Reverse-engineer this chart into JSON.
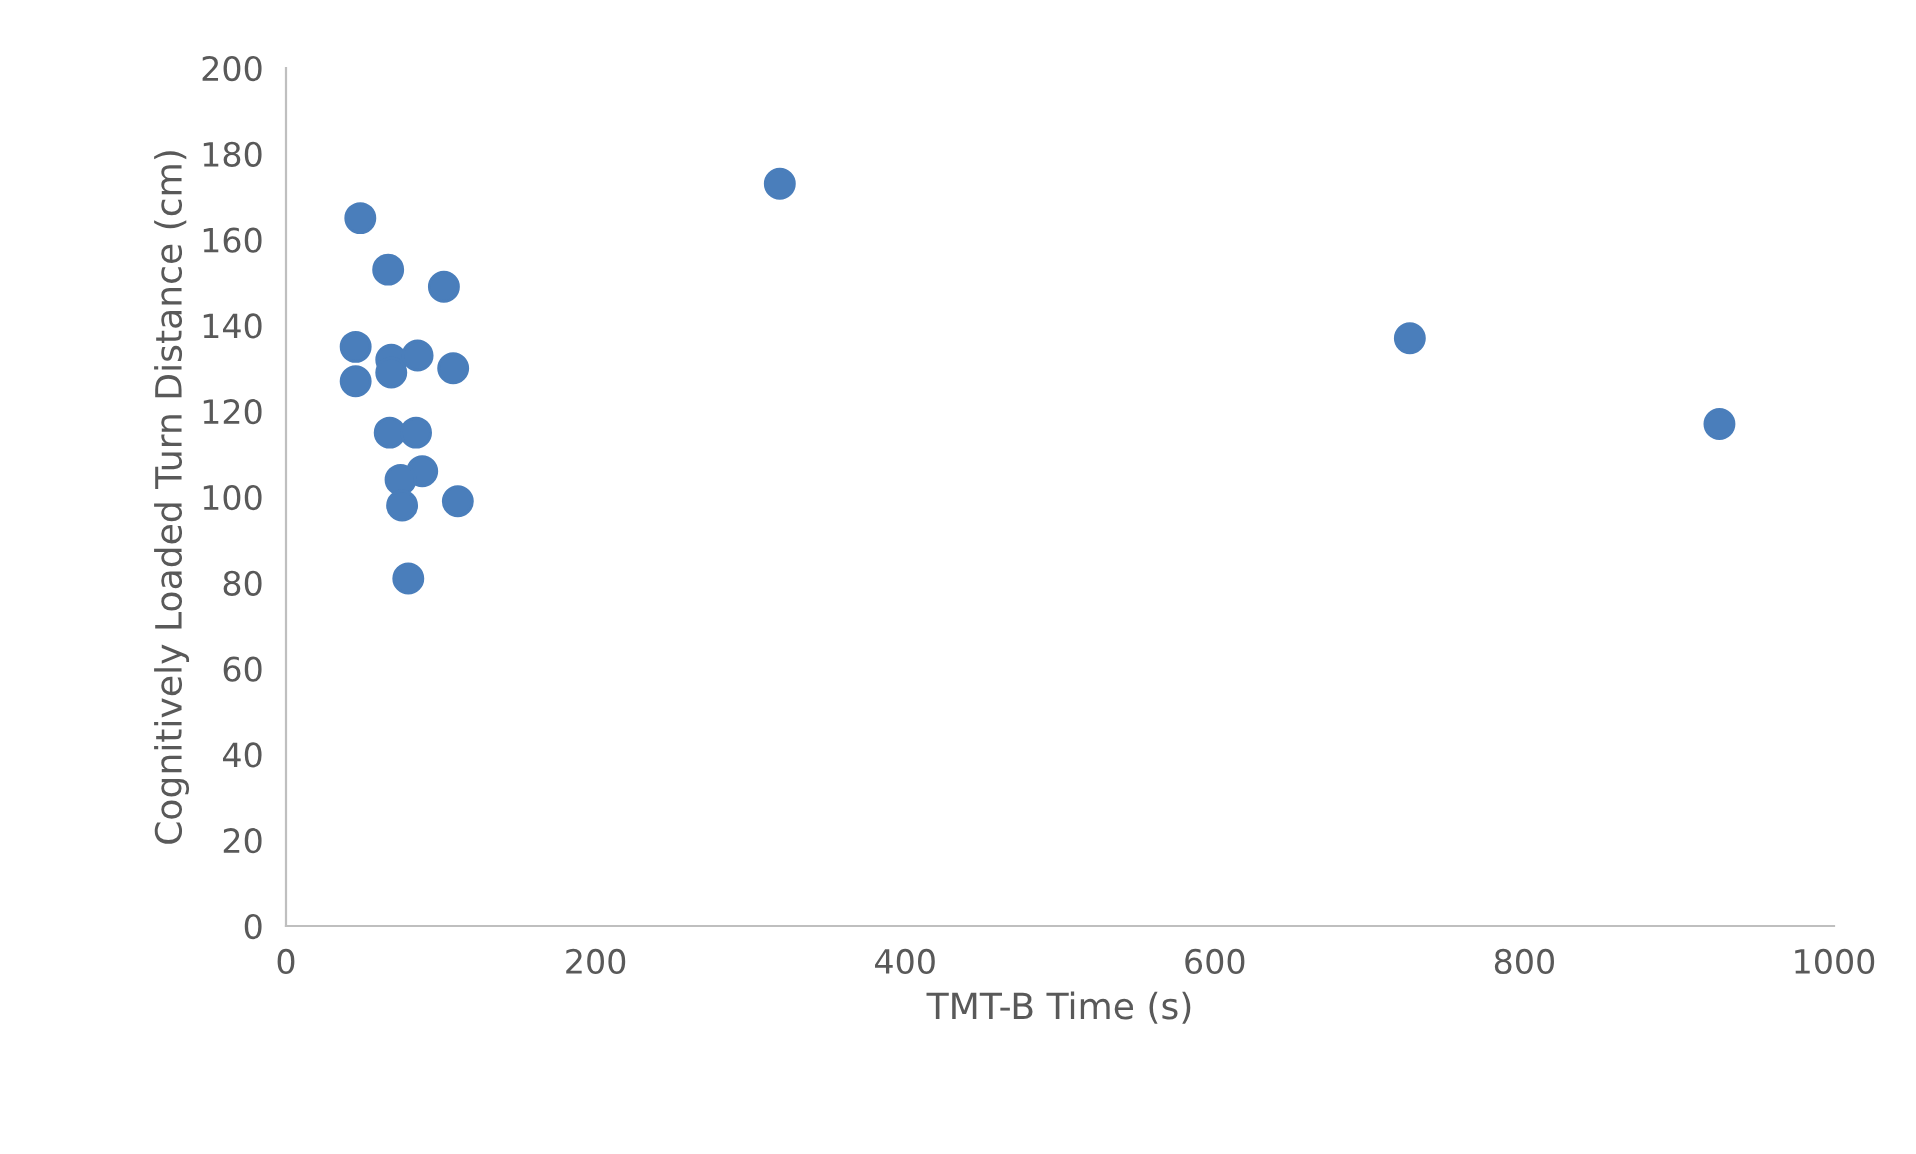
{
  "chart_data": {
    "type": "scatter",
    "xlabel": "TMT-B Time (s)",
    "ylabel": "Cognitively Loaded Turn Distance (cm)",
    "xlim": [
      0,
      1000
    ],
    "xticks": [
      0,
      200,
      400,
      600,
      800,
      1000
    ],
    "ylim": [
      0,
      200
    ],
    "yticks": [
      0,
      20,
      40,
      60,
      80,
      100,
      120,
      140,
      160,
      180,
      200
    ],
    "marker": "circle",
    "grid": false,
    "legend": false,
    "series": [
      {
        "color": "#4a7ebb",
        "x": [
          48,
          66,
          102,
          45,
          68,
          85,
          108,
          45,
          68,
          67,
          84,
          88,
          74,
          75,
          111,
          79,
          319,
          726,
          926
        ],
        "values": [
          165,
          153,
          149,
          135,
          132,
          133,
          130,
          127,
          129,
          115,
          115,
          106,
          104,
          98,
          99,
          81,
          173,
          137,
          117
        ]
      }
    ]
  }
}
